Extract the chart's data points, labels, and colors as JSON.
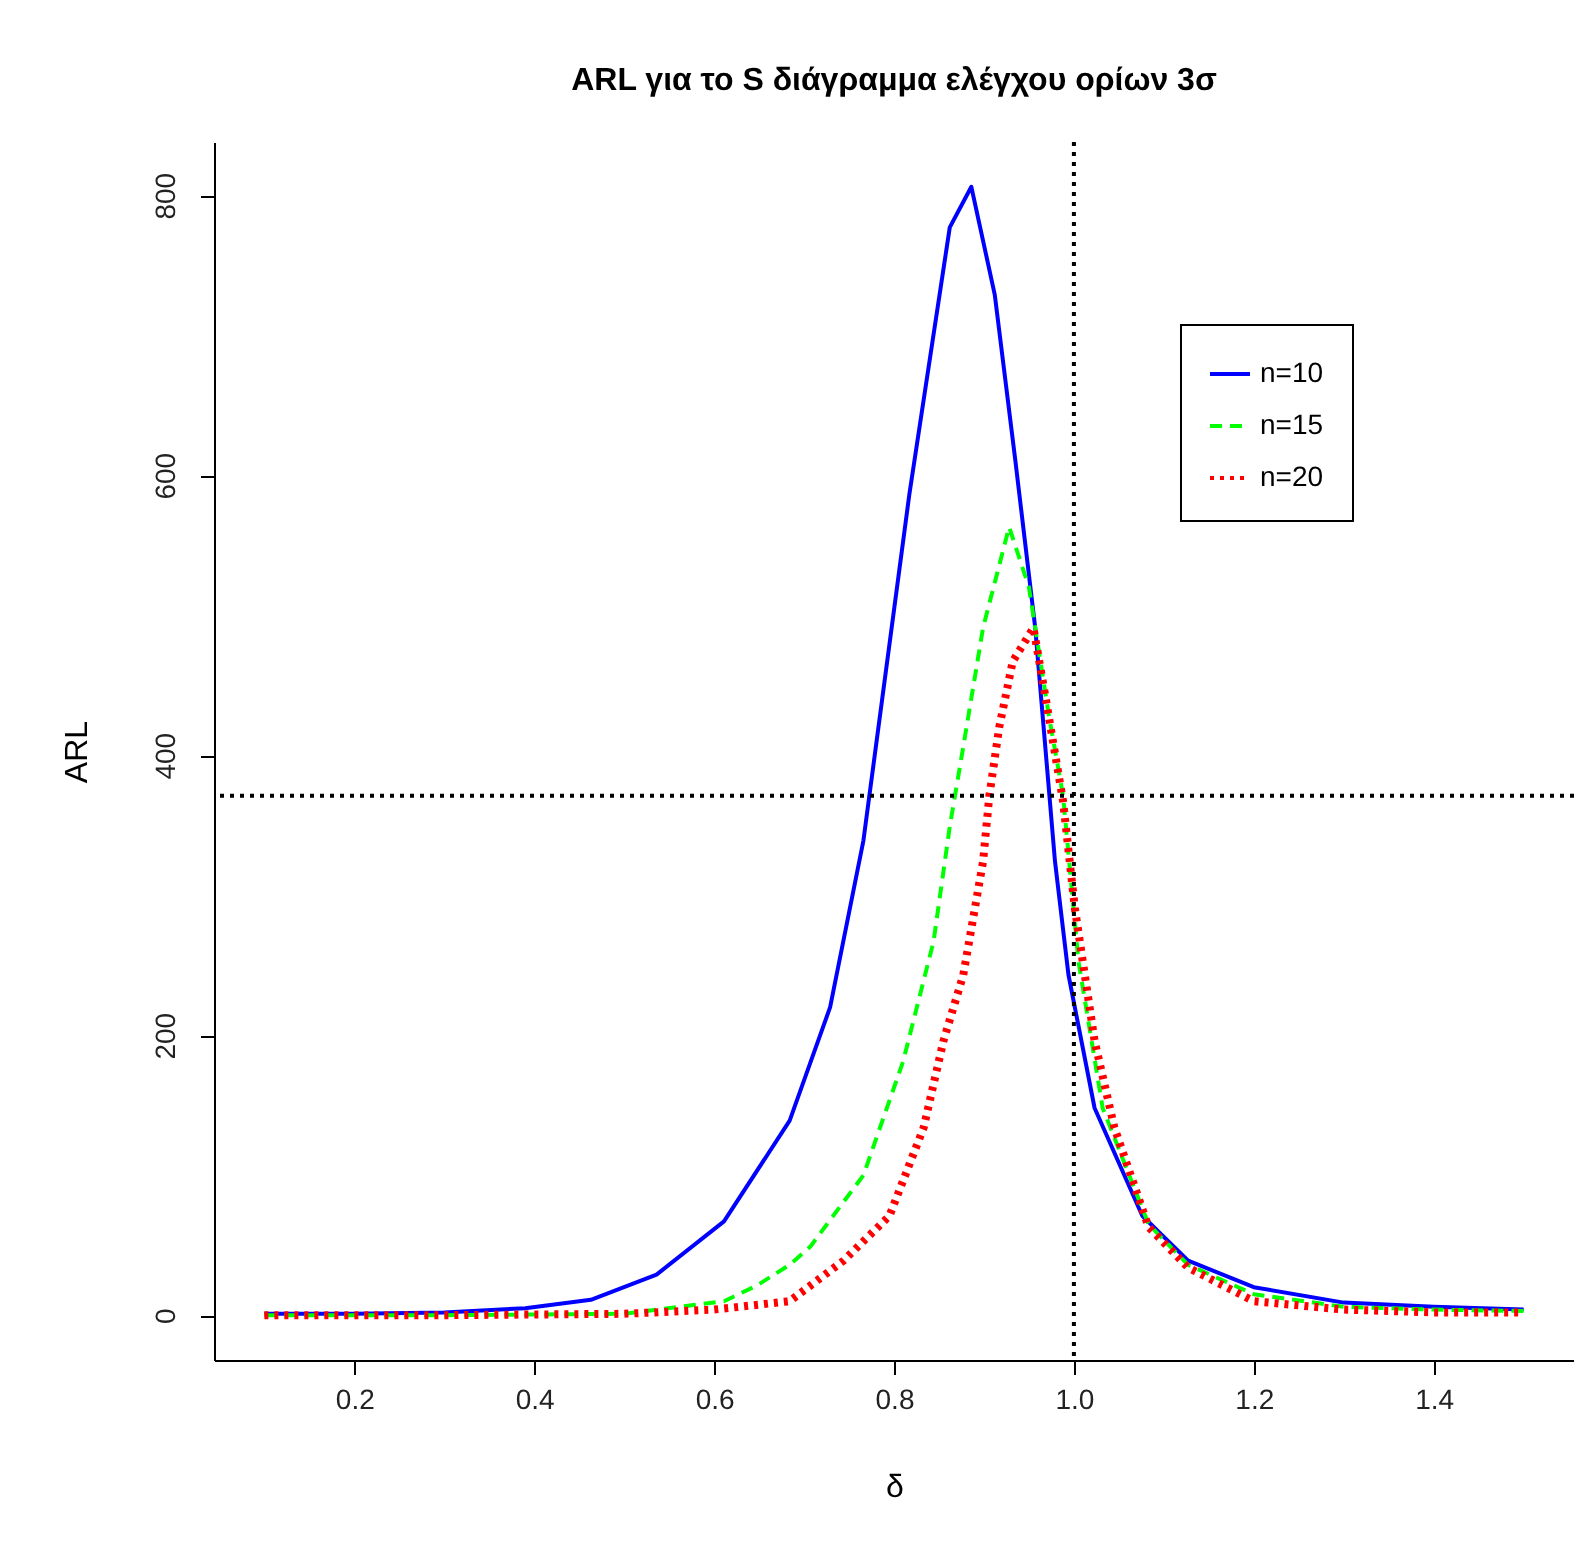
{
  "chart_data": {
    "type": "line",
    "title": "ARL για το S διάγραμμα ελέγχου ορίων 3σ",
    "xlabel": "δ",
    "ylabel": "ARL",
    "xlim": [
      0.044,
      1.556
    ],
    "ylim": [
      -32,
      838
    ],
    "xticks": [
      0.2,
      0.4,
      0.6,
      0.8,
      {
        "value": 1,
        "label": "1.0"
      },
      1.2,
      1.4
    ],
    "yticks": [
      0,
      200,
      400,
      600,
      800
    ],
    "grid": false,
    "legend": "top right",
    "series": [
      {
        "name": "n=10",
        "color": "#0000ff",
        "line_style": "solid",
        "x": [
          0.1,
          0.2,
          0.3,
          0.39,
          0.463,
          0.536,
          0.611,
          0.684,
          0.729,
          0.766,
          0.817,
          0.862,
          0.886,
          0.912,
          0.935,
          0.957,
          0.979,
          0.994,
          1.023,
          1.076,
          1.127,
          1.2,
          1.3,
          1.4,
          1.5
        ],
        "values": [
          1,
          1,
          2,
          5,
          11,
          29,
          67,
          139,
          220,
          339,
          586,
          777,
          806,
          729,
          610,
          491,
          324,
          243,
          148,
          71,
          39,
          20,
          9,
          6,
          4
        ]
      },
      {
        "name": "n=15",
        "color": "#00ff00",
        "line_style": "dashed",
        "x": [
          0.1,
          0.3,
          0.5,
          0.611,
          0.647,
          0.684,
          0.707,
          0.766,
          0.81,
          0.844,
          0.862,
          0.877,
          0.899,
          0.928,
          0.95,
          0.972,
          0.988,
          1.005,
          1.032,
          1.083,
          1.127,
          1.2,
          1.3,
          1.4,
          1.5
        ],
        "values": [
          0,
          0,
          1,
          10,
          21,
          36,
          49,
          100,
          181,
          267,
          349,
          406,
          491,
          563,
          520,
          429,
          371,
          253,
          148,
          65,
          36,
          15,
          6,
          4,
          3
        ]
      },
      {
        "name": "n=20",
        "color": "#ff0000",
        "line_style": "dotted",
        "x": [
          0.1,
          0.3,
          0.5,
          0.6,
          0.684,
          0.744,
          0.795,
          0.833,
          0.855,
          0.877,
          0.899,
          0.906,
          0.917,
          0.932,
          0.955,
          0.968,
          0.988,
          1.001,
          1.023,
          1.045,
          1.083,
          1.127,
          1.2,
          1.3,
          1.4,
          1.5
        ],
        "values": [
          0,
          0,
          1,
          4,
          10,
          39,
          71,
          134,
          196,
          243,
          324,
          371,
          420,
          467,
          491,
          443,
          367,
          291,
          196,
          134,
          63,
          34,
          10,
          4,
          2,
          2
        ]
      }
    ],
    "ref_lines": [
      {
        "axis": "y",
        "value": 371,
        "color": "#000000",
        "line_style": "dotted"
      },
      {
        "axis": "x",
        "value": 1.0,
        "color": "#000000",
        "line_style": "dotted"
      }
    ]
  }
}
